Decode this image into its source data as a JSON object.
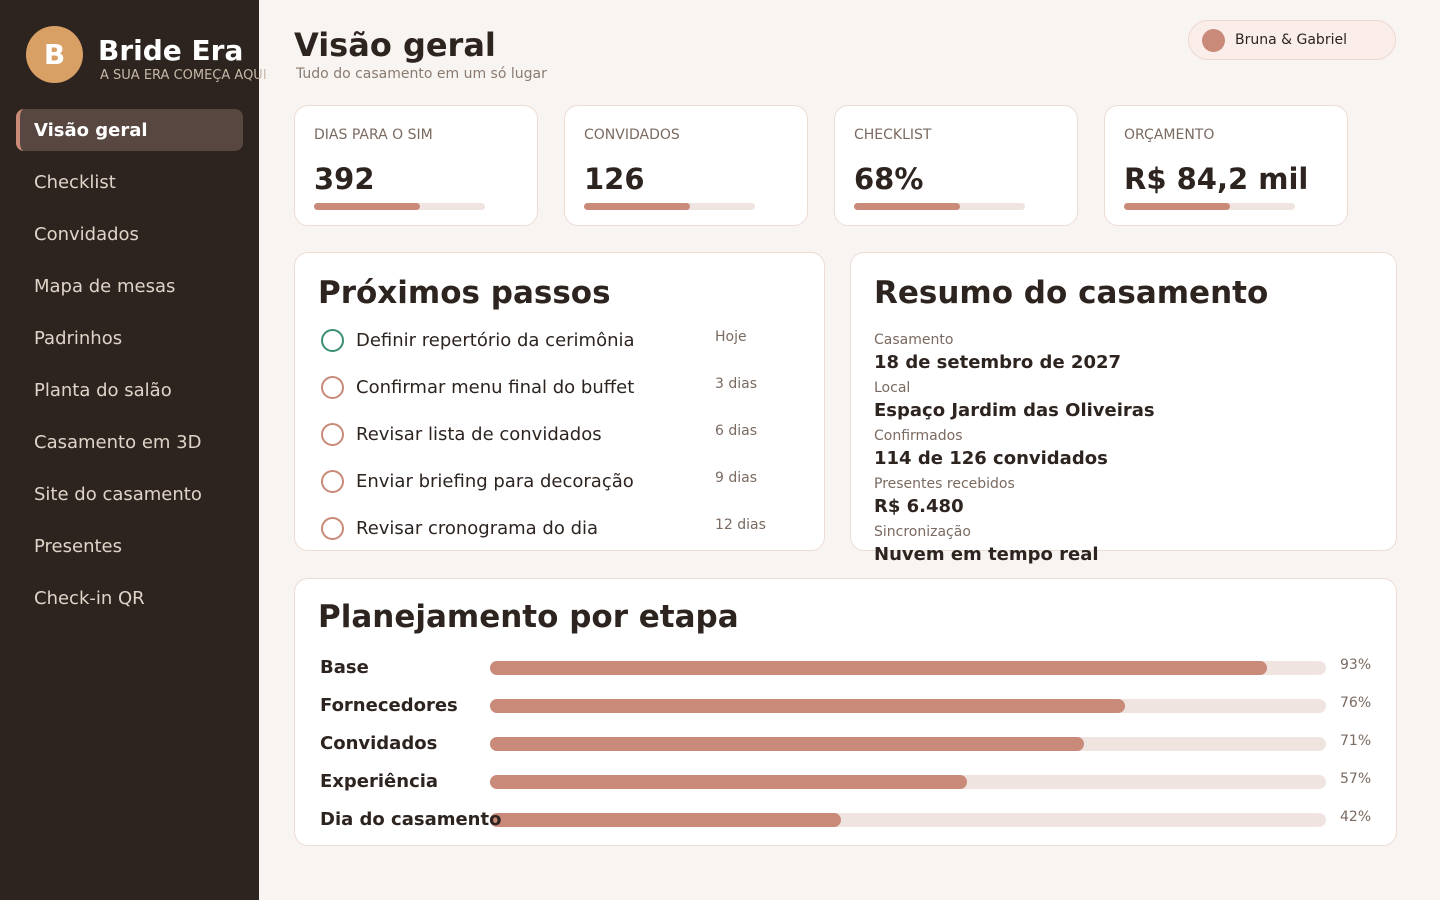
{
  "sidebar": {
    "logo": "B",
    "brand": "Bride Era",
    "tagline": "A SUA ERA COMEÇA AQUI",
    "nav": [
      "Visão geral",
      "Checklist",
      "Convidados",
      "Mapa de mesas",
      "Padrinhos",
      "Planta do salão",
      "Casamento em 3D",
      "Site do casamento",
      "Presentes",
      "Check-in QR"
    ]
  },
  "header": {
    "title": "Visão geral",
    "subtitle": "Tudo do casamento em um só lugar",
    "user": "Bruna & Gabriel"
  },
  "stats": [
    {
      "label": "DIAS PARA O SIM",
      "value": "392"
    },
    {
      "label": "CONVIDADOS",
      "value": "126"
    },
    {
      "label": "CHECKLIST",
      "value": "68%"
    },
    {
      "label": "ORÇAMENTO",
      "value": "R$ 84,2 mil"
    }
  ],
  "next_steps": {
    "title": "Próximos passos",
    "items": [
      {
        "text": "Definir repertório da cerimônia",
        "due": "Hoje"
      },
      {
        "text": "Confirmar menu final do buffet",
        "due": "3 dias"
      },
      {
        "text": "Revisar lista de convidados",
        "due": "6 dias"
      },
      {
        "text": "Enviar briefing para decoração",
        "due": "9 dias"
      },
      {
        "text": "Revisar cronograma do dia",
        "due": "12 dias"
      }
    ]
  },
  "summary": {
    "title": "Resumo do casamento",
    "items": [
      {
        "label": "Casamento",
        "value": "18 de setembro de 2027"
      },
      {
        "label": "Local",
        "value": "Espaço Jardim das Oliveiras"
      },
      {
        "label": "Confirmados",
        "value": "114 de 126 convidados"
      },
      {
        "label": "Presentes recebidos",
        "value": "R$ 6.480"
      },
      {
        "label": "Sincronização",
        "value": "Nuvem em tempo real"
      }
    ]
  },
  "planning": {
    "title": "Planejamento por etapa",
    "stages": [
      {
        "name": "Base",
        "percent": 93,
        "percent_label": "93%"
      },
      {
        "name": "Fornecedores",
        "percent": 76,
        "percent_label": "76%"
      },
      {
        "name": "Convidados",
        "percent": 71,
        "percent_label": "71%"
      },
      {
        "name": "Experiência",
        "percent": 57,
        "percent_label": "57%"
      },
      {
        "name": "Dia do casamento",
        "percent": 42,
        "percent_label": "42%"
      }
    ]
  }
}
